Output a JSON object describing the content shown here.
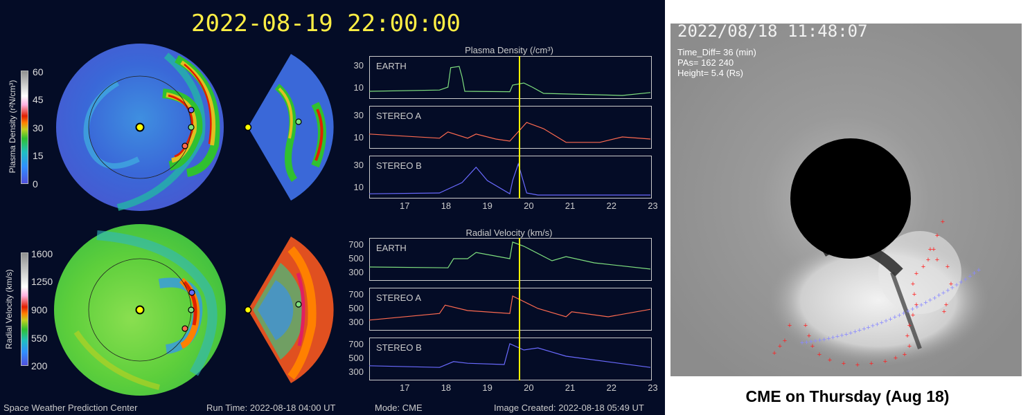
{
  "timestamp": "2022-08-19  22:00:00",
  "density_colorbar": {
    "title": "Plasma Density (r²N/cm³)",
    "ticks": [
      "60",
      "45",
      "30",
      "15",
      "0"
    ]
  },
  "velocity_colorbar": {
    "title": "Radial Velocity (km/s)",
    "ticks": [
      "1600",
      "1250",
      "900",
      "550",
      "200"
    ]
  },
  "density_panel": {
    "title": "Plasma Density (/cm³)",
    "plots": [
      {
        "label": "EARTH",
        "yticks": [
          "30",
          "10"
        ]
      },
      {
        "label": "STEREO A",
        "yticks": [
          "30",
          "10"
        ]
      },
      {
        "label": "STEREO B",
        "yticks": [
          "30",
          "10"
        ]
      }
    ]
  },
  "velocity_panel": {
    "title": "Radial Velocity (km/s)",
    "plots": [
      {
        "label": "EARTH",
        "yticks": [
          "700",
          "500",
          "300"
        ]
      },
      {
        "label": "STEREO A",
        "yticks": [
          "700",
          "500",
          "300"
        ]
      },
      {
        "label": "STEREO B",
        "yticks": [
          "700",
          "500",
          "300"
        ]
      }
    ]
  },
  "x_ticks": [
    "17",
    "18",
    "19",
    "20",
    "21",
    "22",
    "23"
  ],
  "footer": {
    "center": "Space Weather Prediction Center",
    "run_time": "Run Time: 2022-08-18 04:00 UT",
    "mode": "Mode: CME",
    "created": "Image Created: 2022-08-18 05:49 UT"
  },
  "coronagraph": {
    "timestamp": "2022/08/18 11:48:07",
    "time_diff": "Time_Diff= 36 (min)",
    "pas": "PAs=  162 240",
    "height": "Height=  5.4 (Rs)"
  },
  "caption": "CME on Thursday (Aug 18)",
  "colors": {
    "earth": "#7fe07f",
    "stereo_a": "#ff6a50",
    "stereo_b": "#6a6aff",
    "marker": "#ffff00"
  }
}
